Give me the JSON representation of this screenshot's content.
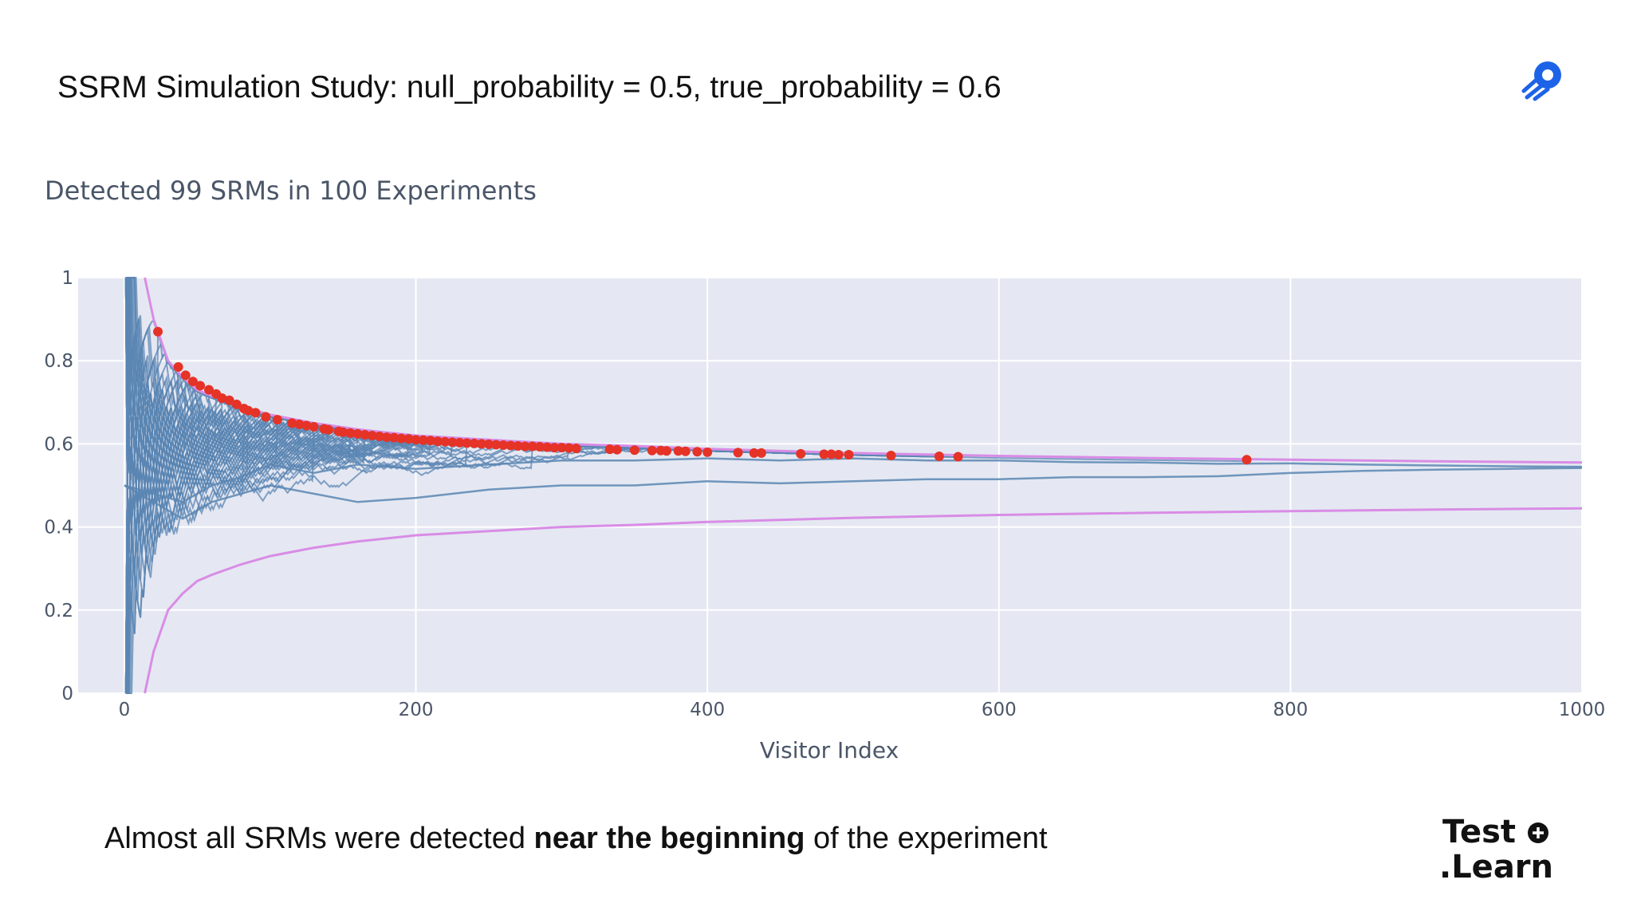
{
  "slide": {
    "title": "SSRM Simulation Study: null_probability = 0.5, true_probability = 0.6",
    "caption_pre": "Almost all SRMs were detected ",
    "caption_bold": "near the beginning",
    "caption_post": " of the experiment",
    "brand_line1": "Test",
    "brand_line2": ".Learn"
  },
  "colors": {
    "plot_bg": "#e5e8f2",
    "series": "#5b86b3",
    "boundary": "#d98ce6",
    "detection": "#e53327",
    "text": "#4a5668"
  },
  "chart_data": {
    "type": "line",
    "title": "Detected 99 SRMs in 100 Experiments",
    "xlabel": "Visitor Index",
    "ylabel": "",
    "xlim": [
      0,
      1000
    ],
    "ylim": [
      0,
      1
    ],
    "x_ticks": [
      0,
      200,
      400,
      600,
      800,
      1000
    ],
    "y_ticks": [
      0,
      0.2,
      0.4,
      0.6,
      0.8,
      1
    ],
    "x_tick_labels": [
      "0",
      "200",
      "400",
      "600",
      "800",
      "1000"
    ],
    "y_tick_labels": [
      "0",
      "0.2",
      "0.4",
      "0.6",
      "0.8",
      "1"
    ],
    "grid": true,
    "boundaries": {
      "upper": {
        "x": [
          14,
          20,
          30,
          40,
          50,
          60,
          80,
          100,
          130,
          160,
          200,
          250,
          300,
          350,
          400,
          500,
          600,
          700,
          800,
          900,
          1000
        ],
        "y": [
          1.0,
          0.9,
          0.8,
          0.76,
          0.73,
          0.715,
          0.69,
          0.67,
          0.65,
          0.635,
          0.62,
          0.61,
          0.6,
          0.595,
          0.588,
          0.578,
          0.571,
          0.566,
          0.562,
          0.558,
          0.555
        ]
      },
      "lower": {
        "x": [
          14,
          20,
          30,
          40,
          50,
          60,
          80,
          100,
          130,
          160,
          200,
          250,
          300,
          350,
          400,
          500,
          600,
          700,
          800,
          900,
          1000
        ],
        "y": [
          0.0,
          0.1,
          0.2,
          0.24,
          0.27,
          0.285,
          0.31,
          0.33,
          0.35,
          0.365,
          0.38,
          0.39,
          0.4,
          0.405,
          0.412,
          0.422,
          0.429,
          0.434,
          0.438,
          0.442,
          0.445
        ]
      }
    },
    "detections": {
      "x": [
        23,
        37,
        42,
        47,
        52,
        58,
        63,
        67,
        72,
        77,
        82,
        85,
        90,
        97,
        105,
        115,
        120,
        125,
        130,
        137,
        140,
        147,
        150,
        155,
        160,
        165,
        170,
        175,
        180,
        185,
        190,
        195,
        200,
        205,
        210,
        215,
        220,
        225,
        230,
        235,
        240,
        245,
        250,
        255,
        260,
        265,
        270,
        275,
        280,
        285,
        290,
        295,
        300,
        305,
        310,
        333,
        338,
        350,
        362,
        368,
        372,
        380,
        385,
        393,
        400,
        421,
        432,
        437,
        464,
        480,
        485,
        490,
        497,
        526,
        559,
        572,
        770
      ],
      "y": [
        0.87,
        0.785,
        0.765,
        0.75,
        0.74,
        0.73,
        0.72,
        0.71,
        0.705,
        0.695,
        0.685,
        0.68,
        0.675,
        0.665,
        0.658,
        0.65,
        0.647,
        0.644,
        0.641,
        0.636,
        0.634,
        0.63,
        0.628,
        0.626,
        0.624,
        0.622,
        0.62,
        0.618,
        0.616,
        0.615,
        0.613,
        0.612,
        0.61,
        0.609,
        0.608,
        0.606,
        0.605,
        0.604,
        0.603,
        0.602,
        0.601,
        0.6,
        0.599,
        0.598,
        0.597,
        0.596,
        0.595,
        0.594,
        0.594,
        0.593,
        0.592,
        0.591,
        0.591,
        0.59,
        0.589,
        0.587,
        0.586,
        0.585,
        0.584,
        0.584,
        0.583,
        0.583,
        0.582,
        0.581,
        0.58,
        0.579,
        0.578,
        0.578,
        0.576,
        0.575,
        0.575,
        0.574,
        0.574,
        0.572,
        0.57,
        0.569,
        0.562
      ]
    },
    "series_summary": {
      "count": 100,
      "note": "100 simulated running proportions, drawn as blue lines"
    },
    "long_runs": [
      {
        "x": [
          0,
          40,
          60,
          80,
          100,
          130,
          160,
          200,
          250,
          300,
          350,
          400,
          450,
          500,
          550,
          600,
          650,
          700,
          750,
          800,
          850,
          900,
          950,
          1000
        ],
        "y": [
          0.5,
          0.46,
          0.5,
          0.52,
          0.55,
          0.53,
          0.55,
          0.54,
          0.55,
          0.56,
          0.56,
          0.565,
          0.56,
          0.565,
          0.56,
          0.56,
          0.556,
          0.555,
          0.552,
          0.553,
          0.55,
          0.548,
          0.546,
          0.545
        ]
      },
      {
        "x": [
          0,
          40,
          60,
          80,
          100,
          130,
          160,
          200,
          250,
          300,
          350,
          400,
          450,
          500,
          550,
          600,
          650,
          700,
          750,
          800,
          850,
          900,
          950,
          1000
        ],
        "y": [
          0.5,
          0.42,
          0.46,
          0.48,
          0.5,
          0.48,
          0.46,
          0.47,
          0.49,
          0.5,
          0.5,
          0.51,
          0.505,
          0.51,
          0.515,
          0.515,
          0.52,
          0.52,
          0.522,
          0.53,
          0.535,
          0.538,
          0.54,
          0.542
        ]
      }
    ]
  }
}
